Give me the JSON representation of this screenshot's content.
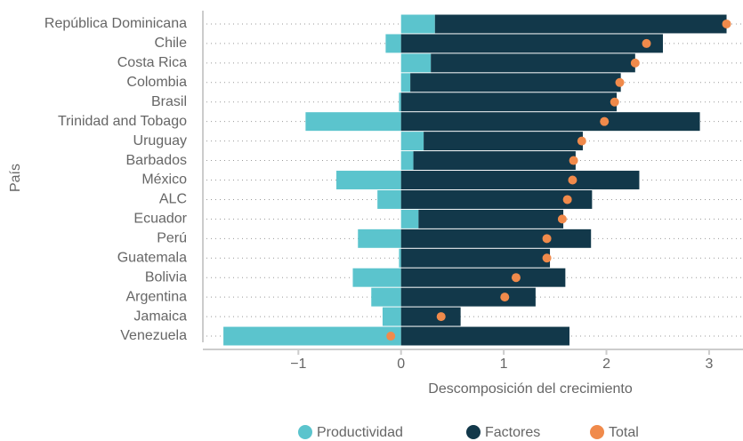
{
  "chart_data": {
    "type": "bar",
    "orientation": "horizontal",
    "stacked": true,
    "y_axis_label": "País",
    "x_axis_label": "Descomposición del crecimiento",
    "categories": [
      "República Dominicana",
      "Chile",
      "Costa Rica",
      "Colombia",
      "Brasil",
      "Trinidad and Tobago",
      "Uruguay",
      "Barbados",
      "México",
      "ALC",
      "Ecuador",
      "Perú",
      "Guatemala",
      "Bolivia",
      "Argentina",
      "Jamaica",
      "Venezuela"
    ],
    "series": [
      {
        "name": "Productividad",
        "color": "#5bc4cd",
        "mark": "bar",
        "values": [
          0.33,
          -0.15,
          0.29,
          0.09,
          -0.02,
          -0.93,
          0.22,
          0.12,
          -0.63,
          -0.23,
          0.17,
          -0.42,
          -0.02,
          -0.47,
          -0.29,
          -0.18,
          -1.73
        ]
      },
      {
        "name": "Factores",
        "color": "#12384a",
        "mark": "bar",
        "values": [
          2.84,
          2.55,
          1.99,
          2.05,
          2.1,
          2.91,
          1.55,
          1.58,
          2.32,
          1.86,
          1.41,
          1.85,
          1.45,
          1.6,
          1.31,
          0.58,
          1.64
        ]
      },
      {
        "name": "Total",
        "color": "#f08a4b",
        "mark": "dot",
        "values": [
          3.17,
          2.39,
          2.28,
          2.13,
          2.08,
          1.98,
          1.76,
          1.68,
          1.67,
          1.62,
          1.57,
          1.42,
          1.42,
          1.12,
          1.01,
          0.39,
          -0.1
        ]
      }
    ],
    "xlim": [
      -1.93,
      3.33
    ],
    "xticks": [
      {
        "value": -1,
        "label": "−1"
      },
      0,
      1,
      2,
      3
    ],
    "grid": true,
    "legend": "bottom"
  }
}
